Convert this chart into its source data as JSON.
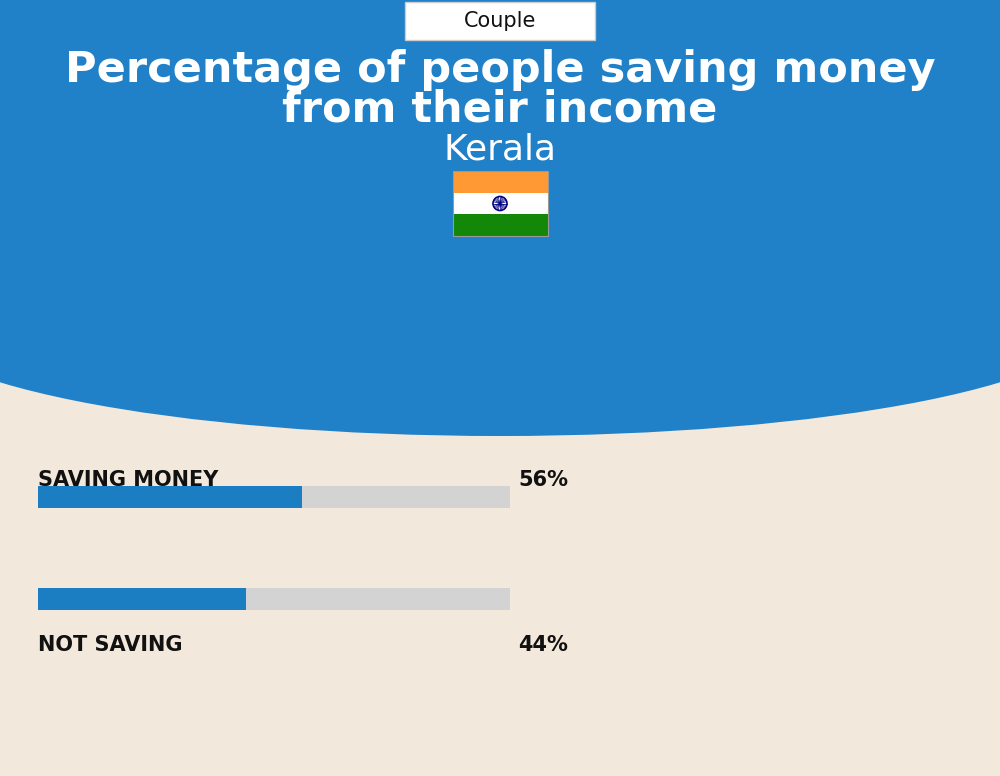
{
  "title_line1": "Percentage of people saving money",
  "title_line2": "from their income",
  "subtitle": "Kerala",
  "tab_label": "Couple",
  "saving_label": "SAVING MONEY",
  "saving_value": 56,
  "saving_text": "56%",
  "not_saving_label": "NOT SAVING",
  "not_saving_value": 44,
  "not_saving_text": "44%",
  "blue_bg_color": "#2080C8",
  "cream_bg_color": "#F2E8DC",
  "bar_blue_color": "#1B7EC2",
  "bar_gray_color": "#D3D3D3",
  "title_color": "#FFFFFF",
  "subtitle_color": "#FFFFFF",
  "label_color": "#111111",
  "tab_bg": "#FFFFFF",
  "tab_border": "#CCCCCC"
}
